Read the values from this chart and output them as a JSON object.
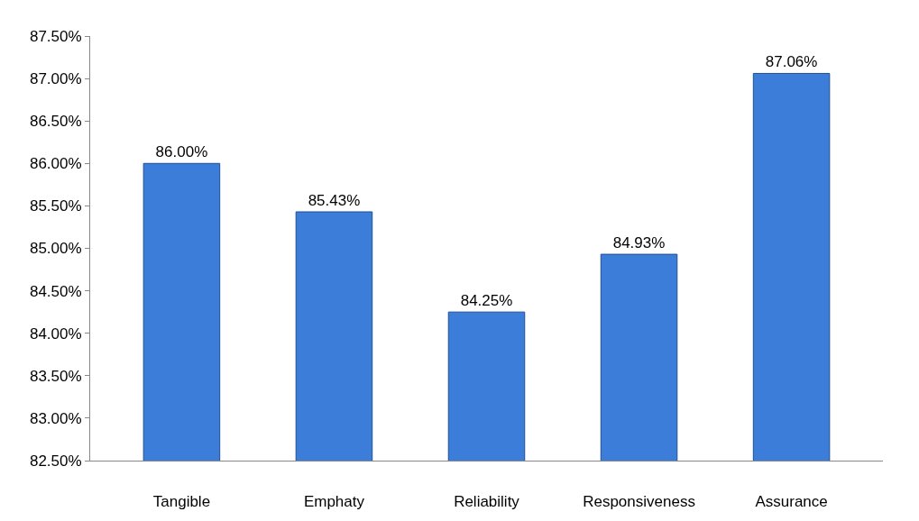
{
  "chart_data": {
    "type": "bar",
    "categories": [
      "Tangible",
      "Emphaty",
      "Reliability",
      "Responsiveness",
      "Assurance"
    ],
    "values": [
      86.0,
      85.43,
      84.25,
      84.93,
      87.06
    ],
    "value_labels": [
      "86.00%",
      "85.43%",
      "84.25%",
      "84.93%",
      "87.06%"
    ],
    "color": "#3b7dd8",
    "ylim": [
      82.5,
      87.5
    ],
    "yticks": [
      {
        "value": 82.5,
        "label": "82.50%"
      },
      {
        "value": 83.0,
        "label": "83.00%"
      },
      {
        "value": 83.5,
        "label": "83.50%"
      },
      {
        "value": 84.0,
        "label": "84.00%"
      },
      {
        "value": 84.5,
        "label": "84.50%"
      },
      {
        "value": 85.0,
        "label": "85.00%"
      },
      {
        "value": 85.5,
        "label": "85.50%"
      },
      {
        "value": 86.0,
        "label": "86.00%"
      },
      {
        "value": 86.5,
        "label": "86.50%"
      },
      {
        "value": 87.0,
        "label": "87.00%"
      },
      {
        "value": 87.5,
        "label": "87.50%"
      }
    ],
    "legend": false
  }
}
